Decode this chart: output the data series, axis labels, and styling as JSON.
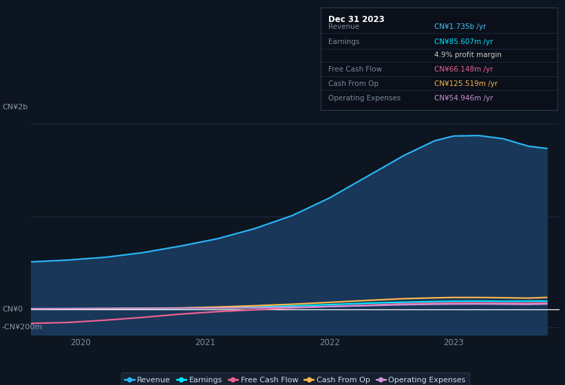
{
  "bg_color": "#0d1520",
  "plot_bg_color": "#0d1520",
  "grid_color": "#1e3048",
  "title_box": {
    "title": "Dec 31 2023",
    "rows": [
      {
        "label": "Revenue",
        "value": "CN¥1.735b /yr",
        "value_color": "#4fc3f7"
      },
      {
        "label": "Earnings",
        "value": "CN¥85.607m /yr",
        "value_color": "#00e5ff"
      },
      {
        "label": "",
        "value": "4.9% profit margin",
        "value_color": "#cccccc"
      },
      {
        "label": "Free Cash Flow",
        "value": "CN¥66.148m /yr",
        "value_color": "#f06292"
      },
      {
        "label": "Cash From Op",
        "value": "CN¥125.519m /yr",
        "value_color": "#ffb74d"
      },
      {
        "label": "Operating Expenses",
        "value": "CN¥54.946m /yr",
        "value_color": "#ce93d8"
      }
    ]
  },
  "y_label_top": "CN¥2b",
  "y_label_zero": "CN¥0",
  "y_label_neg": "-CN¥200m",
  "x_ticks": [
    2020,
    2021,
    2022,
    2023
  ],
  "ylim": [
    -280,
    2050
  ],
  "xlim": [
    2019.6,
    2023.85
  ],
  "series": {
    "Revenue": {
      "color": "#29b6f6",
      "fill": true,
      "fill_color": "#1a3a5c",
      "fill_alpha": 0.95,
      "x": [
        2019.6,
        2019.9,
        2020.2,
        2020.5,
        2020.8,
        2021.1,
        2021.4,
        2021.7,
        2022.0,
        2022.3,
        2022.6,
        2022.85,
        2023.0,
        2023.2,
        2023.4,
        2023.6,
        2023.75
      ],
      "y": [
        510,
        530,
        560,
        610,
        680,
        760,
        870,
        1010,
        1200,
        1430,
        1660,
        1820,
        1870,
        1875,
        1840,
        1760,
        1735
      ]
    },
    "Earnings": {
      "color": "#00e5ff",
      "fill": false,
      "x": [
        2019.6,
        2019.9,
        2020.2,
        2020.5,
        2020.8,
        2021.1,
        2021.4,
        2021.7,
        2022.0,
        2022.3,
        2022.6,
        2022.85,
        2023.0,
        2023.2,
        2023.4,
        2023.6,
        2023.75
      ],
      "y": [
        3,
        4,
        5,
        7,
        10,
        15,
        22,
        33,
        48,
        63,
        74,
        81,
        85,
        86,
        84,
        85,
        85.6
      ]
    },
    "Free Cash Flow": {
      "color": "#f06292",
      "fill": false,
      "x": [
        2019.6,
        2019.9,
        2020.2,
        2020.5,
        2020.8,
        2021.1,
        2021.4,
        2021.7,
        2022.0,
        2022.3,
        2022.6,
        2022.85,
        2023.0,
        2023.2,
        2023.4,
        2023.6,
        2023.75
      ],
      "y": [
        -155,
        -145,
        -120,
        -90,
        -55,
        -28,
        -8,
        12,
        28,
        42,
        57,
        63,
        66,
        66,
        64,
        63,
        66.1
      ]
    },
    "Cash From Op": {
      "color": "#ffb74d",
      "fill": false,
      "x": [
        2019.6,
        2019.9,
        2020.2,
        2020.5,
        2020.8,
        2021.1,
        2021.4,
        2021.7,
        2022.0,
        2022.3,
        2022.6,
        2022.85,
        2023.0,
        2023.2,
        2023.4,
        2023.6,
        2023.75
      ],
      "y": [
        2,
        3,
        5,
        8,
        12,
        22,
        36,
        52,
        72,
        93,
        112,
        121,
        125,
        125,
        122,
        118,
        125.5
      ]
    },
    "Operating Expenses": {
      "color": "#ce93d8",
      "fill": false,
      "x": [
        2019.6,
        2019.9,
        2020.2,
        2020.5,
        2020.8,
        2021.1,
        2021.4,
        2021.7,
        2022.0,
        2022.3,
        2022.6,
        2022.85,
        2023.0,
        2023.2,
        2023.4,
        2023.6,
        2023.75
      ],
      "y": [
        4,
        5,
        6,
        7,
        9,
        11,
        14,
        19,
        27,
        37,
        47,
        52,
        54,
        55,
        53,
        51,
        54.9
      ]
    }
  },
  "legend": [
    {
      "label": "Revenue",
      "color": "#29b6f6"
    },
    {
      "label": "Earnings",
      "color": "#00e5ff"
    },
    {
      "label": "Free Cash Flow",
      "color": "#f06292"
    },
    {
      "label": "Cash From Op",
      "color": "#ffb74d"
    },
    {
      "label": "Operating Expenses",
      "color": "#ce93d8"
    }
  ],
  "legend_bg": "#1a2535",
  "legend_edge": "#2a3a50"
}
